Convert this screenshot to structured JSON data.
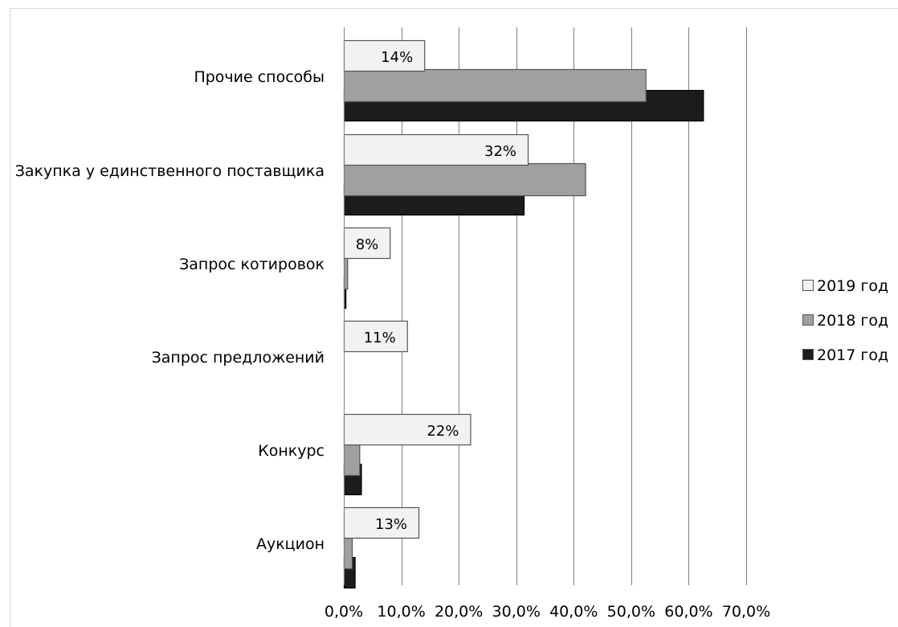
{
  "chart_data": {
    "type": "bar",
    "orientation": "horizontal",
    "categories": [
      "Прочие способы",
      "Закупка у единственного поставщика",
      "Запрос котировок",
      "Запрос предложений",
      "Конкурс",
      "Аукцион"
    ],
    "series": [
      {
        "name": "2019 год",
        "values": [
          14.0,
          32.0,
          8.0,
          11.0,
          22.0,
          13.0
        ],
        "data_labels": [
          "14%",
          "32%",
          "8%",
          "11%",
          "22%",
          "13%"
        ],
        "color": "#f2f2f2"
      },
      {
        "name": "2018 год",
        "values": [
          52.5,
          42.0,
          0.6,
          0.0,
          2.7,
          1.4
        ],
        "color": "#a0a0a0"
      },
      {
        "name": "2017 год",
        "values": [
          62.5,
          31.3,
          0.3,
          0.0,
          3.0,
          1.9
        ],
        "color": "#1c1c1c"
      }
    ],
    "x_ticks": [
      "0,0%",
      "10,0%",
      "20,0%",
      "30,0%",
      "40,0%",
      "50,0%",
      "60,0%",
      "70,0%"
    ],
    "xlim": [
      0,
      70
    ],
    "grid": "vertical",
    "legend_position": "right",
    "title": "",
    "xlabel": "",
    "ylabel": ""
  }
}
